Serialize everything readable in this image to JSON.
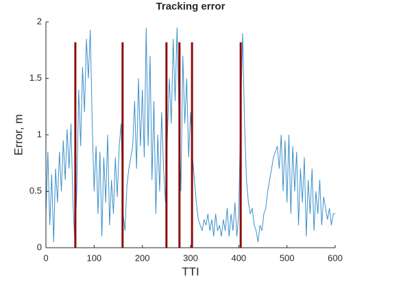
{
  "chart_data": {
    "type": "line",
    "title": "Tracking error",
    "xlabel": "TTI",
    "ylabel": "Error, m",
    "xlim": [
      0,
      600
    ],
    "xticks": [
      0,
      100,
      200,
      300,
      400,
      500,
      600
    ],
    "ylim": [
      0,
      2
    ],
    "yticks": [
      0,
      0.5,
      1,
      1.5,
      2
    ],
    "x": [
      0,
      4,
      8,
      12,
      16,
      20,
      24,
      28,
      32,
      36,
      40,
      44,
      48,
      52,
      56,
      60,
      64,
      68,
      72,
      76,
      80,
      84,
      88,
      92,
      96,
      100,
      104,
      108,
      112,
      116,
      120,
      124,
      128,
      132,
      136,
      140,
      144,
      148,
      152,
      156,
      160,
      164,
      168,
      172,
      176,
      180,
      184,
      188,
      192,
      196,
      200,
      204,
      208,
      212,
      216,
      220,
      224,
      228,
      232,
      236,
      240,
      244,
      248,
      252,
      256,
      260,
      264,
      268,
      272,
      276,
      280,
      284,
      288,
      292,
      296,
      300,
      304,
      308,
      312,
      316,
      320,
      324,
      328,
      332,
      336,
      340,
      344,
      348,
      352,
      356,
      360,
      364,
      368,
      372,
      376,
      380,
      384,
      388,
      392,
      396,
      400,
      404,
      408,
      412,
      416,
      420,
      424,
      428,
      432,
      436,
      440,
      444,
      448,
      452,
      456,
      460,
      464,
      468,
      472,
      476,
      480,
      484,
      488,
      492,
      496,
      500,
      504,
      508,
      512,
      516,
      520,
      524,
      528,
      532,
      536,
      540,
      544,
      548,
      552,
      556,
      560,
      564,
      568,
      572,
      576,
      580,
      584,
      588,
      592,
      596,
      600
    ],
    "series": [
      {
        "color": "#3a8fc8",
        "values": [
          0.3,
          0.85,
          0.2,
          0.65,
          0.05,
          0.7,
          0.4,
          0.85,
          0.5,
          0.95,
          0.6,
          1.05,
          0.7,
          1.1,
          0.4,
          0.05,
          0.5,
          1.4,
          0.9,
          1.6,
          1.2,
          1.85,
          1.5,
          1.93,
          1.1,
          0.5,
          0.9,
          0.3,
          0.85,
          0.1,
          0.8,
          0.4,
          1.0,
          0.2,
          0.6,
          0.3,
          0.8,
          0.45,
          0.9,
          1.1,
          0.3,
          0.15,
          0.55,
          0.7,
          0.8,
          0.9,
          1.3,
          0.7,
          1.5,
          0.9,
          1.4,
          0.8,
          1.95,
          0.9,
          1.7,
          0.6,
          1.3,
          0.3,
          1.0,
          0.5,
          1.2,
          0.7,
          0.4,
          1.0,
          1.5,
          1.1,
          1.85,
          1.3,
          1.95,
          1.2,
          0.5,
          1.7,
          1.1,
          1.5,
          0.8,
          1.2,
          0.8,
          0.6,
          0.4,
          0.25,
          0.2,
          0.15,
          0.25,
          0.2,
          0.3,
          0.15,
          0.25,
          0.1,
          0.3,
          0.15,
          0.2,
          0.1,
          0.25,
          0.15,
          0.35,
          0.1,
          0.3,
          0.15,
          0.4,
          0.1,
          0.3,
          1.2,
          1.9,
          1.1,
          0.6,
          0.4,
          0.3,
          0.35,
          0.2,
          0.15,
          0.05,
          0.2,
          0.15,
          0.3,
          0.35,
          0.5,
          0.6,
          0.7,
          0.8,
          0.85,
          0.9,
          0.7,
          1.0,
          0.5,
          0.95,
          0.4,
          1.0,
          0.3,
          0.9,
          0.5,
          0.85,
          0.2,
          0.7,
          0.4,
          0.8,
          0.1,
          0.6,
          0.3,
          0.7,
          0.15,
          0.5,
          0.3,
          0.6,
          0.2,
          0.45,
          0.35,
          0.25,
          0.35,
          0.2,
          0.3,
          0.3
        ]
      }
    ],
    "markers": {
      "x": [
        61,
        159,
        250,
        277,
        303,
        404
      ],
      "height": 1.82,
      "color": "#8b0a0a"
    }
  }
}
